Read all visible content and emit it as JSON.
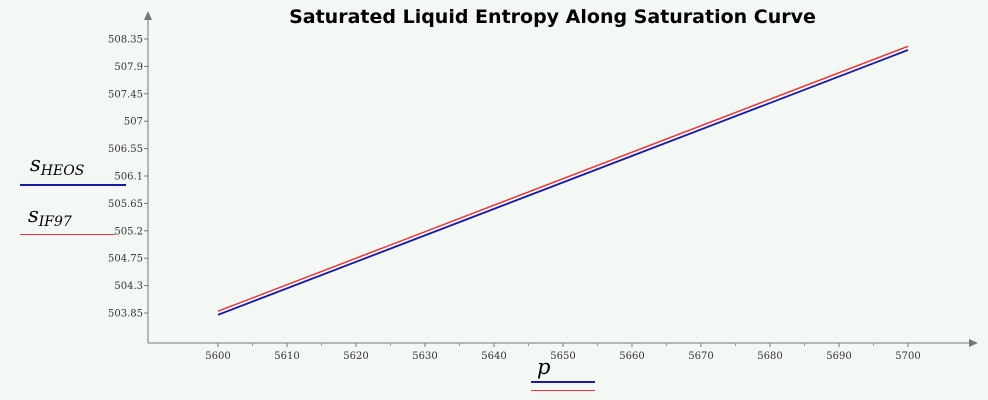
{
  "chart_data": {
    "type": "line",
    "title": "Saturated Liquid Entropy Along Saturation Curve",
    "xlabel": "p",
    "ylabel_series": [
      {
        "name_main": "s",
        "name_sub": "HEOS"
      },
      {
        "name_main": "s",
        "name_sub": "IF97"
      }
    ],
    "x_ticks": [
      "5600",
      "5610",
      "5620",
      "5630",
      "5640",
      "5650",
      "5660",
      "5670",
      "5680",
      "5690",
      "5700"
    ],
    "y_ticks": [
      "503.85",
      "504.3",
      "504.75",
      "505.2",
      "505.65",
      "506.1",
      "506.55",
      "507",
      "507.45",
      "507.9",
      "508.35"
    ],
    "xlim": [
      5591,
      5709
    ],
    "ylim": [
      503.42,
      508.55
    ],
    "grid": false,
    "series": [
      {
        "name": "s_HEOS",
        "color": "#1a1aa0",
        "x": [
          5600,
          5700
        ],
        "y": [
          503.82,
          508.17
        ]
      },
      {
        "name": "s_IF97",
        "color": "#e8343a",
        "x": [
          5600,
          5700
        ],
        "y": [
          503.88,
          508.23
        ]
      }
    ]
  }
}
